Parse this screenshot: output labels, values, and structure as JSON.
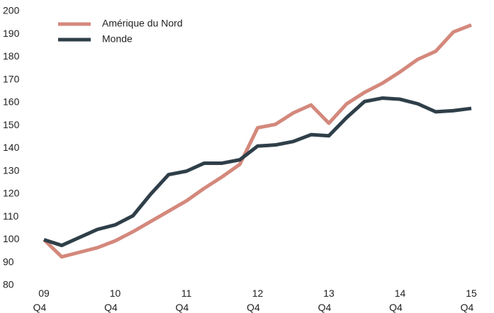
{
  "chart_data": {
    "type": "line",
    "categories": [
      "09 Q4",
      null,
      null,
      null,
      "10 Q4",
      null,
      null,
      null,
      "11 Q4",
      null,
      null,
      null,
      "12 Q4",
      null,
      null,
      null,
      "13 Q4",
      null,
      null,
      null,
      "14 Q4",
      null,
      null,
      null,
      "15 Q4"
    ],
    "series": [
      {
        "name": "Amérique du Nord",
        "color": "#d4887c",
        "values": [
          100,
          92.5,
          94.5,
          96.5,
          99.5,
          103.5,
          108,
          112.5,
          117,
          122.5,
          127.5,
          133,
          149,
          150.5,
          155.5,
          159,
          151,
          159.5,
          164.5,
          168.5,
          173.5,
          179,
          182.5,
          191,
          194
        ]
      },
      {
        "name": "Monde",
        "color": "#2f3f49",
        "values": [
          100,
          97.5,
          101,
          104.5,
          106.5,
          110.5,
          120,
          128.5,
          130,
          133.5,
          133.5,
          135,
          141,
          141.5,
          143,
          146,
          145.5,
          153.5,
          160.5,
          162,
          161.5,
          159.5,
          156,
          156.5,
          157.5
        ]
      }
    ],
    "ylim": [
      80,
      200
    ],
    "yticks": [
      80,
      90,
      100,
      110,
      120,
      130,
      140,
      150,
      160,
      170,
      180,
      190,
      200
    ],
    "legend": "top-left"
  }
}
